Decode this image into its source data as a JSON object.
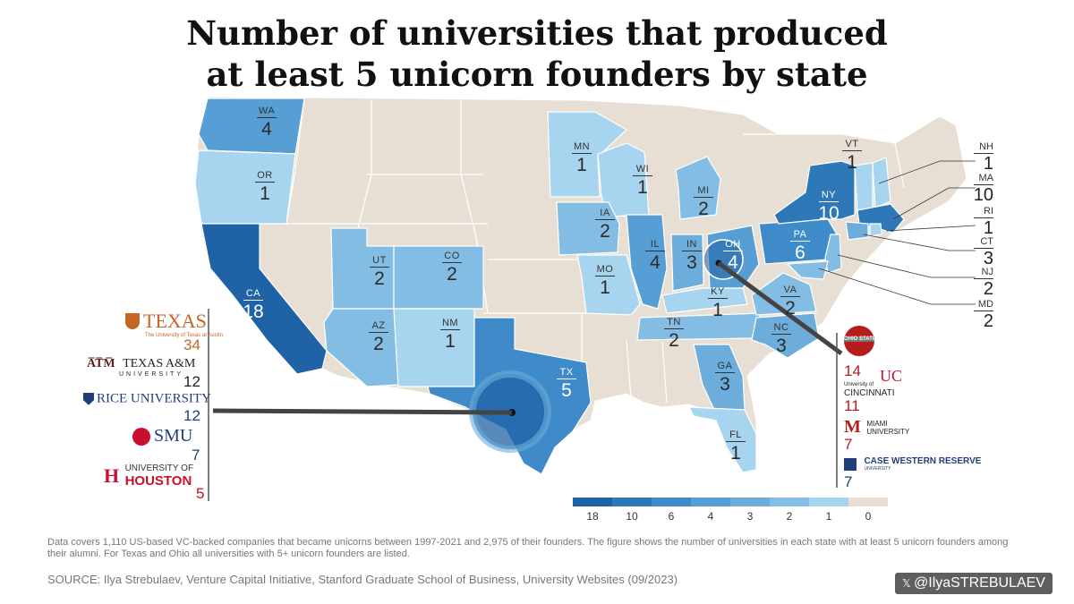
{
  "title_line1": "Number of universities that produced",
  "title_line2": "at least 5 unicorn founders by state",
  "colors": {
    "18": "#1f62a5",
    "10": "#2f78b8",
    "6": "#3f8bc9",
    "4": "#569ed3",
    "3": "#6caddb",
    "2": "#84bde3",
    "1": "#a7d4ef",
    "0": "#e8dfd4",
    "ohio_red": "#b71c1c",
    "texas_orange": "#c4662a"
  },
  "states": {
    "WA": {
      "abbr": "WA",
      "num": "4"
    },
    "OR": {
      "abbr": "OR",
      "num": "1"
    },
    "CA": {
      "abbr": "CA",
      "num": "18"
    },
    "UT": {
      "abbr": "UT",
      "num": "2"
    },
    "CO": {
      "abbr": "CO",
      "num": "2"
    },
    "AZ": {
      "abbr": "AZ",
      "num": "2"
    },
    "NM": {
      "abbr": "NM",
      "num": "1"
    },
    "TX": {
      "abbr": "TX",
      "num": "5"
    },
    "MN": {
      "abbr": "MN",
      "num": "1"
    },
    "WI": {
      "abbr": "WI",
      "num": "1"
    },
    "MI": {
      "abbr": "MI",
      "num": "2"
    },
    "IA": {
      "abbr": "IA",
      "num": "2"
    },
    "IL": {
      "abbr": "IL",
      "num": "4"
    },
    "IN": {
      "abbr": "IN",
      "num": "3"
    },
    "OH": {
      "abbr": "OH",
      "num": "4"
    },
    "MO": {
      "abbr": "MO",
      "num": "1"
    },
    "KY": {
      "abbr": "KY",
      "num": "1"
    },
    "TN": {
      "abbr": "TN",
      "num": "2"
    },
    "NC": {
      "abbr": "NC",
      "num": "3"
    },
    "VA": {
      "abbr": "VA",
      "num": "2"
    },
    "GA": {
      "abbr": "GA",
      "num": "3"
    },
    "FL": {
      "abbr": "FL",
      "num": "1"
    },
    "PA": {
      "abbr": "PA",
      "num": "6"
    },
    "NY": {
      "abbr": "NY",
      "num": "10"
    },
    "VT": {
      "abbr": "VT",
      "num": "1"
    },
    "NH": {
      "abbr": "NH",
      "num": "1"
    },
    "MA": {
      "abbr": "MA",
      "num": "10"
    },
    "RI": {
      "abbr": "RI",
      "num": "1"
    },
    "CT": {
      "abbr": "CT",
      "num": "3"
    },
    "NJ": {
      "abbr": "NJ",
      "num": "2"
    },
    "MD": {
      "abbr": "MD",
      "num": "2"
    }
  },
  "texas_universities": [
    {
      "logo": "TEXAS",
      "logo_sub": "The University of Texas at Austin",
      "count": "34"
    },
    {
      "logo": "TEXAS A&M",
      "logo_sub": "UNIVERSITY",
      "count": "12"
    },
    {
      "logo": "RICE UNIVERSITY",
      "count": "12"
    },
    {
      "logo": "SMU",
      "count": "7"
    },
    {
      "logo": "UNIVERSITY OF",
      "logo_sub": "HOUSTON",
      "count": "5"
    }
  ],
  "ohio_universities": [
    {
      "logo": "OHIO STATE",
      "count": "14"
    },
    {
      "logo": "University of",
      "logo_sub": "CINCINNATI",
      "count": "11"
    },
    {
      "logo": "MIAMI",
      "logo_sub": "UNIVERSITY",
      "count": "7"
    },
    {
      "logo": "CASE WESTERN RESERVE",
      "logo_sub": "UNIVERSITY",
      "count": "7"
    }
  ],
  "legend": [
    "18",
    "10",
    "6",
    "4",
    "3",
    "2",
    "1",
    "0"
  ],
  "note": "Data covers 1,110 US-based VC-backed companies that became unicorns between 1997-2021 and 2,975 of their founders. The figure shows the number of universities in each state with at least 5 unicorn founders among their alumni. For Texas and Ohio all universities with 5+ unicorn founders are listed.",
  "source": "SOURCE: Ilya Strebulaev, Venture Capital Initiative, Stanford Graduate School of Business, University Websites (09/2023)",
  "handle": "@IlyaSTREBULAEV"
}
